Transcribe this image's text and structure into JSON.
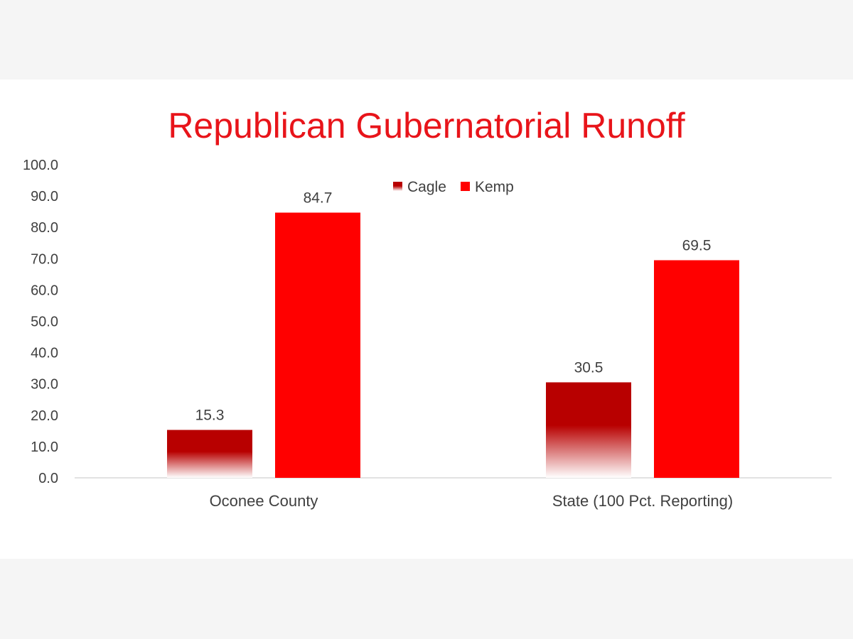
{
  "colors": {
    "background": "#f5f5f5",
    "panel": "#ffffff",
    "title": "#e8141a",
    "cagle": "#b80000",
    "kemp": "#ff0000",
    "axis": "#d9d9d9",
    "text": "#404040"
  },
  "chart_data": {
    "type": "bar",
    "title": "Republican Gubernatorial Runoff",
    "xlabel": "",
    "ylabel": "",
    "categories": [
      "Oconee County",
      "State (100 Pct. Reporting)"
    ],
    "series": [
      {
        "name": "Cagle",
        "values": [
          15.3,
          30.5
        ],
        "data_labels": [
          "15.3",
          "30.5"
        ],
        "color": "#b80000",
        "fill": "gradient"
      },
      {
        "name": "Kemp",
        "values": [
          84.7,
          69.5
        ],
        "data_labels": [
          "84.7",
          "69.5"
        ],
        "color": "#ff0000",
        "fill": "solid"
      }
    ],
    "ylim": [
      0,
      100
    ],
    "yticks": [
      "0.0",
      "10.0",
      "20.0",
      "30.0",
      "40.0",
      "50.0",
      "60.0",
      "70.0",
      "80.0",
      "90.0",
      "100.0"
    ],
    "grid": false,
    "legend": "top-center"
  }
}
